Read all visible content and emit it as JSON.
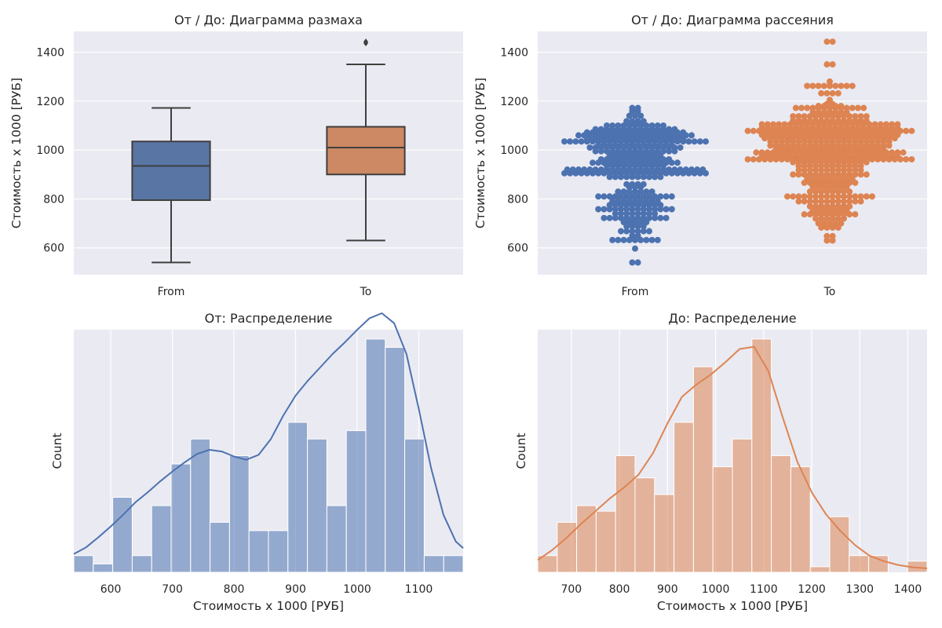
{
  "colors": {
    "background": "#eaeaf2",
    "grid": "#ffffff",
    "from": "#4c72b0",
    "from_box": "#5975a4",
    "to": "#dd8452",
    "to_box": "#cc8963",
    "whisker": "#3f3f3f"
  },
  "chart_data": [
    {
      "type": "box",
      "title": "От / До: Диаграмма размаха",
      "ylabel": "Стоимость х 1000 [РУБ]",
      "xlabel": "",
      "categories": [
        "From",
        "To"
      ],
      "ylim": [
        490,
        1485
      ],
      "yticks": [
        600,
        800,
        1000,
        1200,
        1400
      ],
      "grid": true,
      "boxes": [
        {
          "name": "From",
          "whisker_low": 540,
          "q1": 795,
          "median": 935,
          "q3": 1035,
          "whisker_high": 1172,
          "outliers": []
        },
        {
          "name": "To",
          "whisker_low": 630,
          "q1": 900,
          "median": 1010,
          "q3": 1095,
          "whisker_high": 1350,
          "outliers": [
            1437,
            1443
          ]
        }
      ]
    },
    {
      "type": "scatter",
      "title": "От / До: Диаграмма рассеяния",
      "ylabel": "Стоимость х 1000 [РУБ]",
      "xlabel": "",
      "categories": [
        "From",
        "To"
      ],
      "ylim": [
        490,
        1485
      ],
      "yticks": [
        600,
        800,
        1000,
        1200,
        1400
      ],
      "grid": true,
      "series": [
        {
          "name": "From",
          "bins": [
            [
              540,
              2
            ],
            [
              597,
              1
            ],
            [
              632,
              9
            ],
            [
              650,
              2
            ],
            [
              668,
              6
            ],
            [
              688,
              4
            ],
            [
              705,
              5
            ],
            [
              722,
              12
            ],
            [
              740,
              8
            ],
            [
              758,
              14
            ],
            [
              775,
              10
            ],
            [
              790,
              9
            ],
            [
              810,
              14
            ],
            [
              830,
              7
            ],
            [
              848,
              3
            ],
            [
              860,
              4
            ],
            [
              890,
              10
            ],
            [
              905,
              26
            ],
            [
              920,
              25
            ],
            [
              935,
              11
            ],
            [
              948,
              16
            ],
            [
              962,
              13
            ],
            [
              980,
              10
            ],
            [
              995,
              15
            ],
            [
              1010,
              17
            ],
            [
              1020,
              14
            ],
            [
              1035,
              26
            ],
            [
              1045,
              18
            ],
            [
              1060,
              21
            ],
            [
              1072,
              18
            ],
            [
              1085,
              15
            ],
            [
              1100,
              11
            ],
            [
              1118,
              4
            ],
            [
              1140,
              3
            ],
            [
              1160,
              2
            ],
            [
              1172,
              2
            ]
          ]
        },
        {
          "name": "To",
          "bins": [
            [
              630,
              2
            ],
            [
              648,
              2
            ],
            [
              683,
              4
            ],
            [
              700,
              5
            ],
            [
              720,
              6
            ],
            [
              737,
              10
            ],
            [
              752,
              7
            ],
            [
              770,
              8
            ],
            [
              790,
              12
            ],
            [
              810,
              16
            ],
            [
              830,
              8
            ],
            [
              850,
              7
            ],
            [
              866,
              10
            ],
            [
              880,
              9
            ],
            [
              900,
              14
            ],
            [
              918,
              12
            ],
            [
              935,
              12
            ],
            [
              950,
              14
            ],
            [
              962,
              30
            ],
            [
              976,
              25
            ],
            [
              990,
              27
            ],
            [
              1005,
              20
            ],
            [
              1018,
              22
            ],
            [
              1034,
              22
            ],
            [
              1048,
              24
            ],
            [
              1062,
              25
            ],
            [
              1078,
              30
            ],
            [
              1090,
              25
            ],
            [
              1105,
              25
            ],
            [
              1120,
              14
            ],
            [
              1138,
              14
            ],
            [
              1155,
              7
            ],
            [
              1172,
              13
            ],
            [
              1180,
              5
            ],
            [
              1188,
              2
            ],
            [
              1205,
              1
            ],
            [
              1232,
              4
            ],
            [
              1262,
              9
            ],
            [
              1280,
              1
            ],
            [
              1350,
              2
            ],
            [
              1443,
              2
            ]
          ]
        }
      ]
    },
    {
      "type": "bar",
      "title": "От: Распределение",
      "xlabel": "Стоимость х 1000 [РУБ]",
      "ylabel": "Count",
      "xlim": [
        540,
        1172
      ],
      "xticks": [
        600,
        700,
        800,
        900,
        1000,
        1100
      ],
      "grid": true,
      "bin_edges": [
        540,
        571.6,
        603.2,
        634.8,
        666.4,
        698,
        729.6,
        761.2,
        792.8,
        824.4,
        856,
        887.6,
        919.2,
        950.8,
        982.4,
        1014,
        1045.6,
        1077.2,
        1108.8,
        1140.4,
        1172
      ],
      "counts": [
        2,
        1,
        9,
        2,
        8,
        13,
        16,
        6,
        14,
        5,
        5,
        18,
        16,
        8,
        17,
        28,
        27,
        16,
        2,
        2
      ],
      "kde": {
        "x": [
          540,
          560,
          580,
          600,
          620,
          640,
          660,
          680,
          700,
          720,
          740,
          760,
          780,
          800,
          820,
          840,
          860,
          880,
          900,
          920,
          940,
          960,
          980,
          1000,
          1020,
          1040,
          1060,
          1080,
          1100,
          1120,
          1140,
          1160,
          1172
        ],
        "y": [
          2.2,
          3.0,
          4.2,
          5.5,
          6.9,
          8.4,
          9.6,
          10.9,
          12.1,
          13.2,
          14.2,
          14.7,
          14.5,
          13.9,
          13.5,
          14.1,
          16.0,
          18.8,
          21.2,
          23.0,
          24.6,
          26.2,
          27.6,
          29.1,
          30.5,
          31.1,
          29.9,
          26.2,
          19.6,
          12.5,
          6.9,
          3.7,
          2.9
        ]
      }
    },
    {
      "type": "bar",
      "title": "До: Распределение",
      "xlabel": "Стоимость х 1000 [РУБ]",
      "ylabel": "Count",
      "xlim": [
        630,
        1440
      ],
      "xticks": [
        700,
        800,
        900,
        1000,
        1100,
        1200,
        1300,
        1400
      ],
      "grid": true,
      "bin_edges": [
        630,
        670.5,
        711,
        751.5,
        792,
        832.5,
        873,
        913.5,
        954,
        994.5,
        1035,
        1075.5,
        1116,
        1156.5,
        1197,
        1237.5,
        1278,
        1318.5,
        1359,
        1399.5,
        1440
      ],
      "counts": [
        3,
        9,
        12,
        11,
        21,
        17,
        14,
        27,
        37,
        19,
        24,
        42,
        21,
        19,
        1,
        10,
        3,
        3,
        0,
        2
      ],
      "kde": {
        "x": [
          630,
          660,
          690,
          720,
          750,
          780,
          810,
          840,
          870,
          900,
          930,
          960,
          990,
          1020,
          1050,
          1080,
          1110,
          1140,
          1170,
          1200,
          1230,
          1260,
          1290,
          1320,
          1350,
          1380,
          1410,
          1440
        ],
        "y": [
          2.2,
          4.0,
          6.2,
          8.7,
          11.0,
          13.3,
          15.3,
          17.6,
          21.5,
          26.8,
          31.6,
          33.8,
          35.6,
          37.8,
          40.2,
          40.6,
          36.2,
          27.8,
          19.9,
          14.4,
          10.4,
          7.4,
          4.9,
          3.0,
          2.0,
          1.3,
          0.9,
          0.7
        ]
      }
    }
  ]
}
